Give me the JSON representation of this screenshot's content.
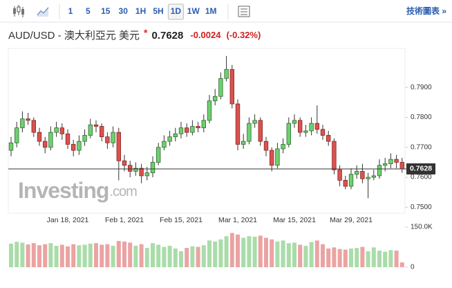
{
  "toolbar": {
    "intervals": [
      "1",
      "5",
      "15",
      "30",
      "1H",
      "5H",
      "1D",
      "1W",
      "1M"
    ],
    "selected": "1D",
    "link": "技術圖表 »"
  },
  "chart_data": {
    "type": "candlestick",
    "title": "AUD/USD - 澳大利亞元 美元",
    "marker": "*",
    "last": 0.7628,
    "change": -0.0024,
    "change_pct": {
      "value": -0.32,
      "label": "(-0.32%)"
    },
    "watermark": [
      "Investing",
      ".com"
    ],
    "up_color": "#6fcf6f",
    "down_color": "#d9534f",
    "categories": [
      null,
      null,
      null,
      null,
      null,
      null,
      null,
      null,
      null,
      null,
      "Jan 18, 2021",
      null,
      null,
      null,
      null,
      null,
      null,
      null,
      null,
      null,
      "Feb 1, 2021",
      null,
      null,
      null,
      null,
      null,
      null,
      null,
      null,
      null,
      "Feb 15, 2021",
      null,
      null,
      null,
      null,
      null,
      null,
      null,
      null,
      null,
      "Mar 1, 2021",
      null,
      null,
      null,
      null,
      null,
      null,
      null,
      null,
      null,
      "Mar 15, 2021",
      null,
      null,
      null,
      null,
      null,
      null,
      null,
      null,
      null,
      "Mar 29, 2021",
      null,
      null,
      null,
      null,
      null,
      null,
      null,
      null,
      null
    ],
    "open": [
      0.769,
      0.7715,
      0.7765,
      0.7795,
      0.779,
      0.775,
      0.772,
      0.77,
      0.775,
      0.7765,
      0.7745,
      0.771,
      0.769,
      0.772,
      0.774,
      0.7775,
      0.777,
      0.7735,
      0.7715,
      0.775,
      0.7655,
      0.764,
      0.762,
      0.763,
      0.7605,
      0.7615,
      0.765,
      0.77,
      0.772,
      0.7735,
      0.7745,
      0.7765,
      0.775,
      0.777,
      0.7765,
      0.779,
      0.7855,
      0.787,
      0.793,
      0.796,
      0.7845,
      0.771,
      0.772,
      0.778,
      0.779,
      0.772,
      0.769,
      0.764,
      0.7695,
      0.771,
      0.778,
      0.779,
      0.775,
      0.7755,
      0.778,
      0.776,
      0.774,
      0.772,
      0.7625,
      0.759,
      0.757,
      0.761,
      0.762,
      0.7595,
      0.76,
      0.7605,
      0.764,
      0.7645,
      0.766,
      0.765
    ],
    "high": [
      0.7735,
      0.7785,
      0.782,
      0.7815,
      0.78,
      0.7765,
      0.7735,
      0.777,
      0.7785,
      0.778,
      0.776,
      0.7725,
      0.774,
      0.776,
      0.7795,
      0.779,
      0.778,
      0.775,
      0.777,
      0.7765,
      0.7675,
      0.7655,
      0.765,
      0.7645,
      0.7635,
      0.767,
      0.7715,
      0.774,
      0.7755,
      0.7765,
      0.7785,
      0.778,
      0.779,
      0.7785,
      0.781,
      0.7875,
      0.7895,
      0.795,
      0.8005,
      0.7975,
      0.786,
      0.7745,
      0.78,
      0.781,
      0.78,
      0.7735,
      0.77,
      0.7715,
      0.773,
      0.78,
      0.781,
      0.78,
      0.7775,
      0.78,
      0.784,
      0.7775,
      0.7755,
      0.773,
      0.764,
      0.7605,
      0.763,
      0.764,
      0.7645,
      0.7615,
      0.7625,
      0.766,
      0.7665,
      0.768,
      0.7675,
      0.7665
    ],
    "low": [
      0.767,
      0.77,
      0.775,
      0.7775,
      0.7735,
      0.7705,
      0.768,
      0.769,
      0.7735,
      0.7725,
      0.7695,
      0.767,
      0.7675,
      0.7705,
      0.773,
      0.775,
      0.772,
      0.7695,
      0.77,
      0.759,
      0.762,
      0.76,
      0.7605,
      0.758,
      0.759,
      0.76,
      0.764,
      0.769,
      0.7705,
      0.772,
      0.773,
      0.7735,
      0.774,
      0.775,
      0.775,
      0.778,
      0.784,
      0.786,
      0.792,
      0.783,
      0.769,
      0.7695,
      0.771,
      0.7765,
      0.7705,
      0.767,
      0.762,
      0.763,
      0.768,
      0.77,
      0.7765,
      0.7735,
      0.7735,
      0.774,
      0.7745,
      0.7725,
      0.7705,
      0.761,
      0.757,
      0.756,
      0.756,
      0.7595,
      0.758,
      0.753,
      0.759,
      0.7595,
      0.762,
      0.763,
      0.763,
      0.7615
    ],
    "close": [
      0.7715,
      0.7765,
      0.7795,
      0.779,
      0.775,
      0.772,
      0.77,
      0.775,
      0.7765,
      0.7745,
      0.771,
      0.769,
      0.772,
      0.774,
      0.7775,
      0.777,
      0.7735,
      0.7715,
      0.775,
      0.7655,
      0.764,
      0.762,
      0.763,
      0.7605,
      0.7615,
      0.765,
      0.77,
      0.772,
      0.7735,
      0.7745,
      0.7765,
      0.775,
      0.777,
      0.7765,
      0.779,
      0.7855,
      0.787,
      0.793,
      0.796,
      0.7845,
      0.771,
      0.772,
      0.778,
      0.779,
      0.772,
      0.769,
      0.764,
      0.7695,
      0.771,
      0.778,
      0.779,
      0.775,
      0.7755,
      0.778,
      0.776,
      0.774,
      0.772,
      0.7625,
      0.759,
      0.757,
      0.761,
      0.762,
      0.7595,
      0.76,
      0.7605,
      0.764,
      0.7645,
      0.766,
      0.765,
      0.7628
    ],
    "volume": [
      88000,
      95000,
      92000,
      85000,
      90000,
      82000,
      86000,
      90000,
      80000,
      84000,
      78000,
      86000,
      82000,
      84000,
      88000,
      90000,
      84000,
      86000,
      80000,
      98000,
      96000,
      92000,
      80000,
      86000,
      72000,
      90000,
      84000,
      76000,
      80000,
      70000,
      60000,
      72000,
      78000,
      76000,
      82000,
      100000,
      96000,
      104000,
      116000,
      128000,
      122000,
      110000,
      116000,
      114000,
      118000,
      110000,
      104000,
      96000,
      100000,
      90000,
      92000,
      84000,
      80000,
      94000,
      100000,
      86000,
      70000,
      74000,
      68000,
      66000,
      70000,
      72000,
      76000,
      60000,
      74000,
      62000,
      58000,
      64000,
      62000,
      18000
    ],
    "ylim": [
      0.748,
      0.803
    ],
    "yticks": [
      {
        "value": 0.79,
        "label": "0.7900"
      },
      {
        "value": 0.78,
        "label": "0.7800"
      },
      {
        "value": 0.77,
        "label": "0.7700"
      },
      {
        "value": 0.76,
        "label": "0.7600"
      },
      {
        "value": 0.75,
        "label": "0.7500"
      }
    ],
    "vlim": [
      0,
      150000
    ],
    "vticks": [
      {
        "value": 150000,
        "label": "150.0K"
      },
      0
    ]
  }
}
